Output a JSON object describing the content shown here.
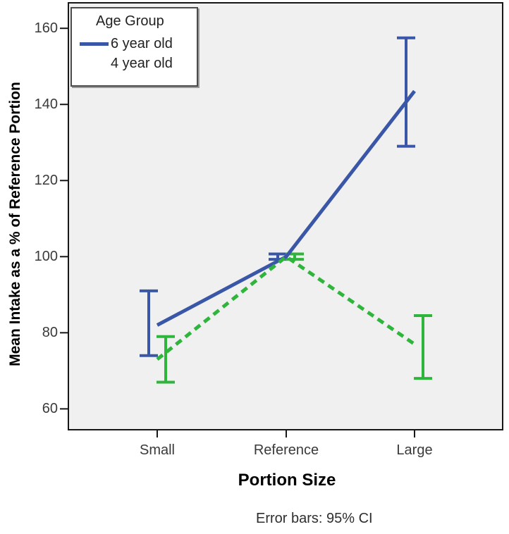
{
  "figure": {
    "caption": "Error bars: 95% CI"
  },
  "legend": {
    "title": "Age Group"
  },
  "chart_data": {
    "type": "line",
    "title": "",
    "xlabel": "Portion Size",
    "ylabel": "Mean Intake as a % of Reference Portion",
    "categories": [
      "Small",
      "Reference",
      "Large"
    ],
    "y_ticks": [
      60,
      80,
      100,
      120,
      140,
      160
    ],
    "ylim": [
      54.7,
      166.7
    ],
    "grid": false,
    "legend_position": "top-left",
    "error_bar_note": "Error bars: 95% CI",
    "panel_background": "#f0f0f1",
    "series": [
      {
        "name": "6 year old",
        "color": "#3a57a7",
        "line_style": "solid",
        "values": [
          82,
          100,
          143.5
        ],
        "ci_low": [
          74,
          99.3,
          129
        ],
        "ci_high": [
          91,
          100.7,
          157.5
        ]
      },
      {
        "name": "4 year old",
        "color": "#2fb53c",
        "line_style": "dashed",
        "values": [
          73,
          100,
          77
        ],
        "ci_low": [
          67,
          99.3,
          68
        ],
        "ci_high": [
          79,
          100.7,
          84.5
        ]
      }
    ]
  }
}
